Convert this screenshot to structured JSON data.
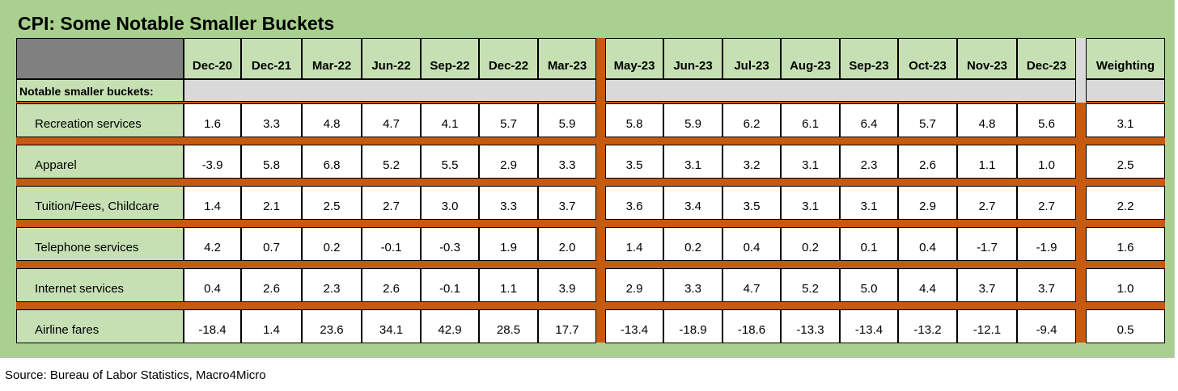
{
  "title": "CPI: Some Notable Smaller Buckets",
  "table": {
    "columns": [
      "Dec-20",
      "Dec-21",
      "Mar-22",
      "Jun-22",
      "Sep-22",
      "Dec-22",
      "Mar-23",
      "May-23",
      "Jun-23",
      "Jul-23",
      "Aug-23",
      "Sep-23",
      "Oct-23",
      "Nov-23",
      "Dec-23",
      "Weighting"
    ],
    "section_label": "Notable smaller buckets:",
    "rows": [
      {
        "label": "Recreation services",
        "values": [
          "1.6",
          "3.3",
          "4.8",
          "4.7",
          "4.1",
          "5.7",
          "5.9",
          "5.8",
          "5.9",
          "6.2",
          "6.1",
          "6.4",
          "5.7",
          "4.8",
          "5.6",
          "3.1"
        ]
      },
      {
        "label": "Apparel",
        "values": [
          "-3.9",
          "5.8",
          "6.8",
          "5.2",
          "5.5",
          "2.9",
          "3.3",
          "3.5",
          "3.1",
          "3.2",
          "3.1",
          "2.3",
          "2.6",
          "1.1",
          "1.0",
          "2.5"
        ]
      },
      {
        "label": "Tuition/Fees, Childcare",
        "values": [
          "1.4",
          "2.1",
          "2.5",
          "2.7",
          "3.0",
          "3.3",
          "3.7",
          "3.6",
          "3.4",
          "3.5",
          "3.1",
          "3.1",
          "2.9",
          "2.7",
          "2.7",
          "2.2"
        ]
      },
      {
        "label": "Telephone services",
        "values": [
          "4.2",
          "0.7",
          "0.2",
          "-0.1",
          "-0.3",
          "1.9",
          "2.0",
          "1.4",
          "0.2",
          "0.4",
          "0.2",
          "0.1",
          "0.4",
          "-1.7",
          "-1.9",
          "1.6"
        ]
      },
      {
        "label": "Internet services",
        "values": [
          "0.4",
          "2.6",
          "2.3",
          "2.6",
          "-0.1",
          "1.1",
          "3.9",
          "2.9",
          "3.3",
          "4.7",
          "5.2",
          "5.0",
          "4.4",
          "3.7",
          "3.7",
          "1.0"
        ]
      },
      {
        "label": "Airline fares",
        "values": [
          "-18.4",
          "1.4",
          "23.6",
          "34.1",
          "42.9",
          "28.5",
          "17.7",
          "-13.4",
          "-18.9",
          "-18.6",
          "-13.3",
          "-13.4",
          "-13.2",
          "-12.1",
          "-9.4",
          "0.5"
        ]
      }
    ]
  },
  "source": "Source: Bureau of Labor Statistics, Macro4Micro"
}
